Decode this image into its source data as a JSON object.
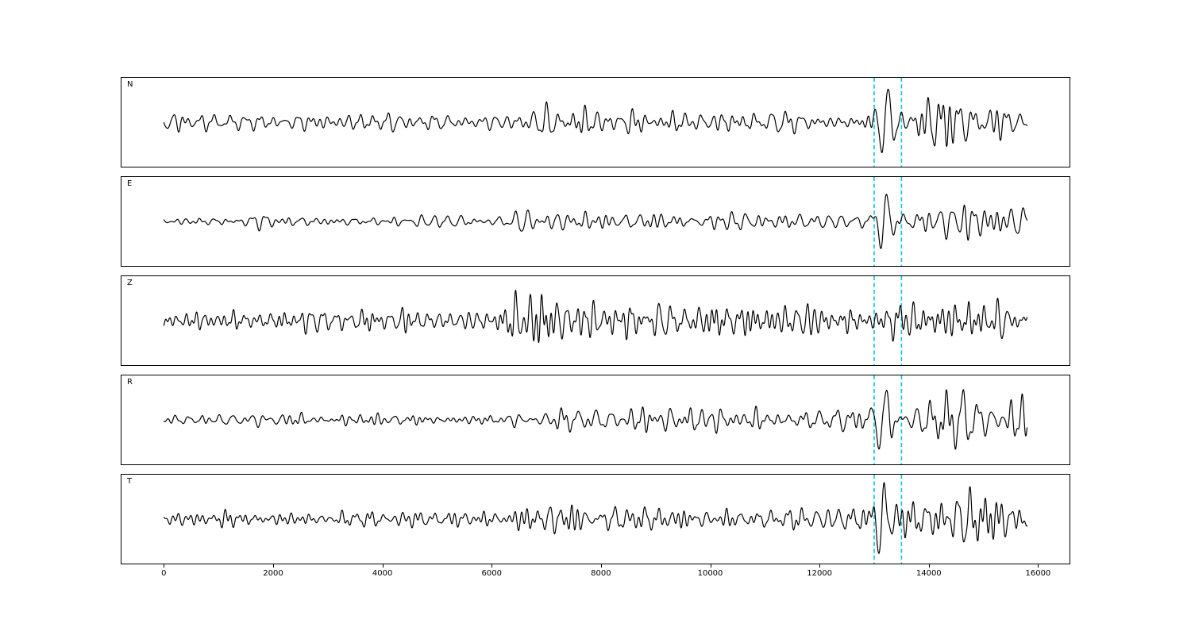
{
  "figure": {
    "background": "#ffffff",
    "kind": "seismic-waveform-figure"
  },
  "chart_data": {
    "type": "line",
    "title": "",
    "xlabel": "",
    "ylabel": "",
    "x_ticks": [
      0,
      2000,
      4000,
      6000,
      8000,
      10000,
      12000,
      14000,
      16000
    ],
    "xlim": [
      -790,
      16590
    ],
    "x_start": 0,
    "x_end": 15800,
    "picks": [
      13000,
      13500
    ],
    "pick_color": "#00c8d1",
    "pick_line_style": "dashed",
    "trace_color": "#000000",
    "legend": "none",
    "grid": false,
    "channels": [
      {
        "label": "N",
        "seed": 101,
        "period_range": [
          90,
          320
        ],
        "arrival": {
          "x": 13180,
          "amp": 46,
          "period": 240,
          "width": 160
        },
        "envelope": [
          [
            0,
            9
          ],
          [
            2500,
            10
          ],
          [
            6400,
            10
          ],
          [
            7000,
            17
          ],
          [
            8200,
            16
          ],
          [
            10000,
            15
          ],
          [
            12300,
            13
          ],
          [
            13000,
            14
          ],
          [
            13600,
            22
          ],
          [
            14000,
            34
          ],
          [
            14500,
            40
          ],
          [
            15000,
            36
          ],
          [
            15400,
            32
          ],
          [
            15800,
            24
          ]
        ]
      },
      {
        "label": "E",
        "seed": 202,
        "period_range": [
          90,
          330
        ],
        "arrival": {
          "x": 13170,
          "amp": 40,
          "period": 230,
          "width": 150
        },
        "envelope": [
          [
            0,
            6
          ],
          [
            3000,
            7
          ],
          [
            5800,
            7
          ],
          [
            6600,
            11
          ],
          [
            8000,
            13
          ],
          [
            9500,
            12
          ],
          [
            11500,
            13
          ],
          [
            13000,
            10
          ],
          [
            13600,
            14
          ],
          [
            14100,
            26
          ],
          [
            14700,
            34
          ],
          [
            15100,
            22
          ],
          [
            15500,
            28
          ],
          [
            15800,
            22
          ]
        ]
      },
      {
        "label": "Z",
        "seed": 303,
        "period_range": [
          60,
          260
        ],
        "arrival": {
          "x": 13400,
          "amp": 16,
          "period": 230,
          "width": 160
        },
        "envelope": [
          [
            0,
            13
          ],
          [
            3000,
            14
          ],
          [
            5900,
            13
          ],
          [
            6250,
            18
          ],
          [
            6450,
            46
          ],
          [
            7000,
            44
          ],
          [
            7400,
            28
          ],
          [
            8200,
            24
          ],
          [
            9000,
            20
          ],
          [
            10300,
            26
          ],
          [
            11200,
            20
          ],
          [
            12600,
            18
          ],
          [
            13300,
            20
          ],
          [
            13800,
            28
          ],
          [
            14500,
            26
          ],
          [
            15300,
            26
          ],
          [
            15800,
            20
          ]
        ]
      },
      {
        "label": "R",
        "seed": 404,
        "period_range": [
          90,
          340
        ],
        "arrival": {
          "x": 13150,
          "amp": 44,
          "period": 250,
          "width": 170
        },
        "envelope": [
          [
            0,
            6
          ],
          [
            3000,
            7
          ],
          [
            6200,
            8
          ],
          [
            7200,
            13
          ],
          [
            8800,
            14
          ],
          [
            10500,
            15
          ],
          [
            12400,
            13
          ],
          [
            13000,
            12
          ],
          [
            13600,
            18
          ],
          [
            14100,
            30
          ],
          [
            14600,
            38
          ],
          [
            15100,
            26
          ],
          [
            15500,
            30
          ],
          [
            15800,
            20
          ]
        ]
      },
      {
        "label": "T",
        "seed": 505,
        "period_range": [
          80,
          300
        ],
        "arrival": {
          "x": 13150,
          "amp": 44,
          "period": 240,
          "width": 170
        },
        "envelope": [
          [
            0,
            9
          ],
          [
            3000,
            10
          ],
          [
            6200,
            11
          ],
          [
            6900,
            18
          ],
          [
            7600,
            19
          ],
          [
            8800,
            14
          ],
          [
            10200,
            13
          ],
          [
            11800,
            15
          ],
          [
            12300,
            20
          ],
          [
            12900,
            13
          ],
          [
            13600,
            26
          ],
          [
            14100,
            42
          ],
          [
            14700,
            40
          ],
          [
            15200,
            28
          ],
          [
            15600,
            30
          ],
          [
            15800,
            18
          ]
        ]
      }
    ]
  }
}
